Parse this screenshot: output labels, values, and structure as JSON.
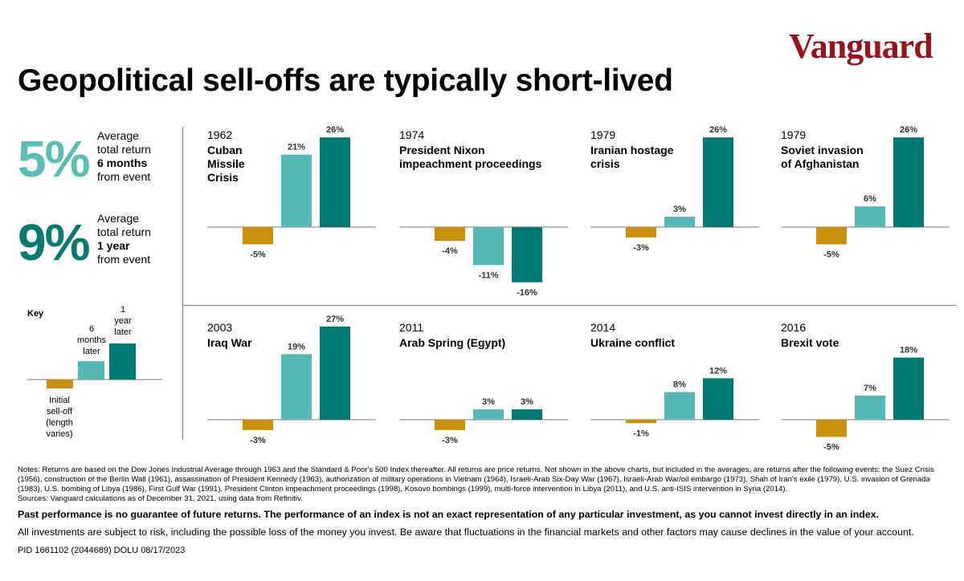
{
  "logo": "Vanguard",
  "title": "Geopolitical sell-offs are typically short-lived",
  "colors": {
    "initial": "#c8900c",
    "six_months": "#55b8b2",
    "one_year": "#007a72",
    "brand": "#96151d",
    "line": "#7a7a7a"
  },
  "stats": [
    {
      "value": "5%",
      "line1": "Average",
      "line2": "total return",
      "bold": "6 months",
      "line4": "from event",
      "color": "#5bbdb5"
    },
    {
      "value": "9%",
      "line1": "Average",
      "line2": "total return",
      "bold": "1 year",
      "line4": "from event",
      "color": "#0a7a70"
    }
  ],
  "key": {
    "title": "Key",
    "initial_label": [
      "Initial",
      "sell-off",
      "(length",
      "varies)"
    ],
    "six_label": [
      "6",
      "months",
      "later"
    ],
    "year_label": [
      "1",
      "year",
      "later"
    ]
  },
  "chart_data": [
    {
      "type": "bar",
      "year": "1962",
      "title": [
        "Cuban",
        "Missile",
        "Crisis"
      ],
      "categories": [
        "Initial sell-off",
        "6 months later",
        "1 year later"
      ],
      "values": [
        -5,
        21,
        26
      ],
      "labels": [
        "-5%",
        "21%",
        "26%"
      ]
    },
    {
      "type": "bar",
      "year": "1974",
      "title": [
        "President Nixon",
        "impeachment proceedings"
      ],
      "categories": [
        "Initial sell-off",
        "6 months later",
        "1 year later"
      ],
      "values": [
        -4,
        -11,
        -16
      ],
      "labels": [
        "-4%",
        "-11%",
        "-16%"
      ]
    },
    {
      "type": "bar",
      "year": "1979",
      "title": [
        "Iranian hostage",
        "crisis"
      ],
      "categories": [
        "Initial sell-off",
        "6 months later",
        "1 year later"
      ],
      "values": [
        -3,
        3,
        26
      ],
      "labels": [
        "-3%",
        "3%",
        "26%"
      ]
    },
    {
      "type": "bar",
      "year": "1979",
      "title": [
        "Soviet invasion",
        "of Afghanistan"
      ],
      "categories": [
        "Initial sell-off",
        "6 months later",
        "1 year later"
      ],
      "values": [
        -5,
        6,
        26
      ],
      "labels": [
        "-5%",
        "6%",
        "26%"
      ]
    },
    {
      "type": "bar",
      "year": "2003",
      "title": [
        "Iraq War"
      ],
      "categories": [
        "Initial sell-off",
        "6 months later",
        "1 year later"
      ],
      "values": [
        -3,
        19,
        27
      ],
      "labels": [
        "-3%",
        "19%",
        "27%"
      ]
    },
    {
      "type": "bar",
      "year": "2011",
      "title": [
        "Arab Spring (Egypt)"
      ],
      "categories": [
        "Initial sell-off",
        "6 months later",
        "1 year later"
      ],
      "values": [
        -3,
        3,
        3
      ],
      "labels": [
        "-3%",
        "3%",
        "3%"
      ]
    },
    {
      "type": "bar",
      "year": "2014",
      "title": [
        "Ukraine conflict"
      ],
      "categories": [
        "Initial sell-off",
        "6 months later",
        "1 year later"
      ],
      "values": [
        -1,
        8,
        12
      ],
      "labels": [
        "-1%",
        "8%",
        "12%"
      ]
    },
    {
      "type": "bar",
      "year": "2016",
      "title": [
        "Brexit vote"
      ],
      "categories": [
        "Initial sell-off",
        "6 months later",
        "1 year later"
      ],
      "values": [
        -5,
        7,
        18
      ],
      "labels": [
        "-5%",
        "7%",
        "18%"
      ]
    }
  ],
  "notes": [
    "Notes: Returns are based on the Dow Jones Industrial Average through 1963 and the Standard & Poor's 500 Index thereafter. All returns are price returns. Not shown in the above charts, but included in the averages, are returns after the following events: the Suez Crisis (1956), construction of the Berlin Wall (1961), assassination of President Kennedy (1963), authorization of military operations in Vietnam (1964), Israeli-Arab Six-Day War (1967), Israeli-Arab War/oil embargo (1973), Shah of Iran's exile (1979), U.S. invasion of Grenada (1983), U.S. bombing of Libya (1986), First Gulf War (1991), President Clinton impeachment proceedings (1998), Kosovo bombings (1999), multi-force intervention in Libya (2011), and U.S. anti-ISIS intervention in Syria (2014).",
    "Sources: Vanguard calculations as of December 31, 2021, using data from Refinitiv."
  ],
  "disclaimer_bold": "Past performance is no guarantee of future returns. The performance of an index is not an exact representation of any particular investment, as you cannot invest directly in an index.",
  "disclaimer": "All investments are subject to risk, including the possible loss of the money you invest. Be aware that fluctuations in the financial markets and other factors may cause declines in the value of your account.",
  "pid": "PID 1661102 (2044689) DOLU 08/17/2023"
}
